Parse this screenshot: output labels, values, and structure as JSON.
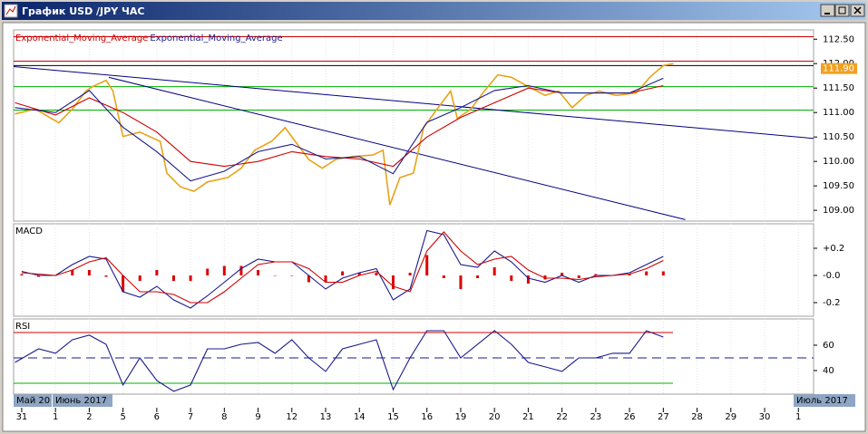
{
  "window": {
    "title": "График USD /JPY ЧАС"
  },
  "period_labels": [
    "Май 20",
    "Июнь 2017",
    "Июль 2017"
  ],
  "chart_data": [
    {
      "type": "line",
      "xlim": [
        -0.24,
        23.45
      ],
      "ylim": [
        108.78,
        112.69
      ],
      "yticks": [
        {
          "value": 112.5,
          "label": "112.50"
        },
        {
          "value": 112.0,
          "label": "112.00"
        },
        {
          "value": 111.5,
          "label": "111.50"
        },
        {
          "value": 111.0,
          "label": "111.00"
        },
        {
          "value": 110.5,
          "label": "110.50"
        },
        {
          "value": 110.0,
          "label": "110.00"
        },
        {
          "value": 109.5,
          "label": "109.50"
        },
        {
          "value": 109.0,
          "label": "109.00"
        }
      ],
      "last_price": {
        "value": 111.9,
        "label": "111.90",
        "color": "#f0a020"
      },
      "hlines": [
        {
          "value": 112.55,
          "color": "#cc0000"
        },
        {
          "value": 112.05,
          "color": "#cc0000"
        },
        {
          "value": 111.96,
          "color": "#000000"
        },
        {
          "value": 111.53,
          "color": "#00b000"
        },
        {
          "value": 111.05,
          "color": "#00b000"
        }
      ],
      "trendlines": [
        {
          "x": [
            -0.24,
            23.45
          ],
          "y": [
            111.94,
            110.47
          ],
          "color": "#000080"
        },
        {
          "x": [
            2.58,
            19.65
          ],
          "y": [
            111.72,
            108.81
          ],
          "color": "#000080"
        }
      ],
      "series": [
        {
          "color": "#e8a317",
          "x": [
            -0.2,
            0.4,
            1.1,
            1.5,
            1.9,
            2.1,
            2.5,
            2.7,
            3.0,
            3.5,
            4.1,
            4.3,
            4.7,
            5.1,
            5.5,
            6.1,
            6.5,
            6.9,
            7.4,
            7.8,
            8.1,
            8.5,
            8.9,
            9.3,
            9.8,
            10.4,
            10.7,
            10.9,
            11.2,
            11.6,
            11.9,
            12.3,
            12.7,
            12.9,
            13.3,
            13.7,
            14.1,
            14.5,
            15.0,
            15.5,
            15.9,
            16.3,
            16.7,
            17.1,
            17.6,
            18.2,
            18.6,
            19.0,
            19.3
          ],
          "values": [
            110.97,
            111.07,
            110.79,
            111.07,
            111.44,
            111.53,
            111.66,
            111.44,
            110.51,
            110.6,
            110.41,
            109.76,
            109.48,
            109.39,
            109.58,
            109.67,
            109.86,
            110.23,
            110.41,
            110.69,
            110.41,
            110.04,
            109.86,
            110.04,
            110.1,
            110.13,
            110.23,
            109.11,
            109.67,
            109.76,
            110.69,
            111.07,
            111.44,
            110.88,
            111.07,
            111.44,
            111.77,
            111.72,
            111.53,
            111.35,
            111.44,
            111.1,
            111.35,
            111.44,
            111.35,
            111.4,
            111.72,
            111.96,
            112.0
          ]
        },
        {
          "name": "Exponential_Moving_Average",
          "color": "#cc0000",
          "x": [
            -0.2,
            1,
            2,
            3,
            4,
            5,
            6,
            7,
            8,
            9,
            10,
            11,
            12,
            13,
            14,
            15,
            16,
            17,
            18,
            19
          ],
          "values": [
            111.2,
            110.95,
            111.3,
            111.0,
            110.6,
            110.0,
            109.9,
            110.0,
            110.2,
            110.1,
            110.05,
            109.9,
            110.5,
            110.9,
            111.2,
            111.5,
            111.4,
            111.4,
            111.4,
            111.55
          ]
        },
        {
          "name": "Exponential_Moving_Average",
          "color": "#1a1a8c",
          "x": [
            -0.2,
            1,
            2,
            3,
            4,
            5,
            6,
            7,
            8,
            9,
            10,
            11,
            12,
            13,
            14,
            15,
            16,
            17,
            18,
            19
          ],
          "values": [
            111.1,
            111.0,
            111.45,
            110.7,
            110.2,
            109.6,
            109.8,
            110.2,
            110.35,
            110.05,
            110.1,
            109.75,
            110.8,
            111.1,
            111.45,
            111.55,
            111.4,
            111.4,
            111.4,
            111.7
          ]
        }
      ]
    },
    {
      "type": "line",
      "title": "MACD",
      "xlim": [
        -0.24,
        23.45
      ],
      "ylim": [
        -0.3,
        0.38
      ],
      "yticks": [
        {
          "value": 0.2,
          "label": "+0.2"
        },
        {
          "value": 0,
          "label": "-0.0"
        },
        {
          "value": -0.2,
          "label": "-0.2"
        }
      ],
      "x": [
        0,
        0.5,
        1,
        1.5,
        2,
        2.5,
        3,
        3.5,
        4,
        4.5,
        5,
        5.5,
        6,
        6.5,
        7,
        7.5,
        8,
        8.5,
        9,
        9.5,
        10,
        10.5,
        11,
        11.5,
        12,
        12.5,
        13,
        13.5,
        14,
        14.5,
        15,
        15.5,
        16,
        16.5,
        17,
        17.5,
        18,
        18.5,
        19
      ],
      "histogram": {
        "color": "#dd0000",
        "values": [
          0.01,
          -0.01,
          0,
          0.04,
          0.04,
          -0.01,
          -0.12,
          -0.04,
          0.04,
          -0.04,
          -0.04,
          0.05,
          0.07,
          0.07,
          0.04,
          0,
          0,
          -0.05,
          -0.05,
          0.03,
          0.02,
          0.02,
          -0.1,
          0.02,
          0.15,
          -0.02,
          -0.1,
          -0.02,
          0.06,
          -0.04,
          -0.06,
          -0.03,
          0.02,
          -0.02,
          0.01,
          0,
          0.01,
          0.03,
          0.03
        ]
      },
      "series": [
        {
          "color": "#1a1a8c",
          "values": [
            0.03,
            0.0,
            0.0,
            0.08,
            0.14,
            0.12,
            -0.12,
            -0.16,
            -0.08,
            -0.18,
            -0.24,
            -0.15,
            -0.05,
            0.05,
            0.12,
            0.1,
            0.1,
            0.0,
            -0.1,
            -0.02,
            0.02,
            0.05,
            -0.18,
            -0.1,
            0.33,
            0.3,
            0.08,
            0.06,
            0.18,
            0.1,
            -0.02,
            -0.05,
            0.0,
            -0.05,
            0.0,
            0.0,
            0.02,
            0.08,
            0.14
          ]
        },
        {
          "color": "#cc0000",
          "values": [
            0.02,
            0.01,
            0.0,
            0.04,
            0.1,
            0.13,
            0.0,
            -0.12,
            -0.12,
            -0.14,
            -0.2,
            -0.2,
            -0.12,
            -0.02,
            0.08,
            0.1,
            0.1,
            0.05,
            -0.05,
            -0.05,
            0.0,
            0.03,
            -0.08,
            -0.12,
            0.18,
            0.32,
            0.18,
            0.08,
            0.12,
            0.14,
            0.04,
            -0.02,
            -0.02,
            -0.03,
            -0.01,
            0.0,
            0.01,
            0.05,
            0.11
          ]
        }
      ]
    },
    {
      "type": "line",
      "title": "RSI",
      "xlim": [
        -0.24,
        23.45
      ],
      "ylim": [
        21.4,
        80.7
      ],
      "yticks": [
        60,
        40
      ],
      "hlines": [
        {
          "value": 70,
          "color": "#cc0000"
        },
        {
          "value": 50,
          "color": "#1a1a8c",
          "dashed": true
        },
        {
          "value": 30,
          "color": "#00b000"
        }
      ],
      "xticks": [
        {
          "value": 0,
          "label": "31"
        },
        {
          "value": 1,
          "label": "1"
        },
        {
          "value": 2,
          "label": "2"
        },
        {
          "value": 3,
          "label": "5"
        },
        {
          "value": 4,
          "label": "6"
        },
        {
          "value": 5,
          "label": "7"
        },
        {
          "value": 6,
          "label": "8"
        },
        {
          "value": 7,
          "label": "9"
        },
        {
          "value": 8,
          "label": "12"
        },
        {
          "value": 9,
          "label": "13"
        },
        {
          "value": 10,
          "label": "14"
        },
        {
          "value": 11,
          "label": "15"
        },
        {
          "value": 12,
          "label": "16"
        },
        {
          "value": 13,
          "label": "19"
        },
        {
          "value": 14,
          "label": "20"
        },
        {
          "value": 15,
          "label": "21"
        },
        {
          "value": 16,
          "label": "22"
        },
        {
          "value": 17,
          "label": "23"
        },
        {
          "value": 18,
          "label": "26"
        },
        {
          "value": 19,
          "label": "27"
        },
        {
          "value": 20,
          "label": "28"
        },
        {
          "value": 21,
          "label": "29"
        },
        {
          "value": 22,
          "label": "30"
        },
        {
          "value": 23,
          "label": "1"
        }
      ],
      "series": [
        {
          "color": "#1a1a8c",
          "x": [
            -0.2,
            0.5,
            1,
            1.5,
            2,
            2.5,
            3,
            3.5,
            4,
            4.5,
            5,
            5.5,
            6,
            6.5,
            7,
            7.5,
            8,
            8.5,
            9,
            9.5,
            10,
            10.5,
            11,
            11.5,
            12,
            12.5,
            13,
            14,
            14.5,
            15,
            15.5,
            16,
            16.5,
            17,
            17.5,
            18,
            18.5,
            19
          ],
          "values": [
            46.4,
            57.1,
            53.6,
            64.3,
            67.9,
            60.7,
            28.6,
            50,
            32.1,
            23.6,
            28.6,
            57.1,
            57.1,
            60.7,
            62.1,
            53.6,
            64.3,
            50,
            39.3,
            57.1,
            60.7,
            64.3,
            25,
            50,
            71.4,
            71.4,
            50,
            71.4,
            60.7,
            46.4,
            42.9,
            39.3,
            50,
            50,
            53.6,
            53.6,
            71.4,
            66.4
          ]
        }
      ]
    }
  ]
}
